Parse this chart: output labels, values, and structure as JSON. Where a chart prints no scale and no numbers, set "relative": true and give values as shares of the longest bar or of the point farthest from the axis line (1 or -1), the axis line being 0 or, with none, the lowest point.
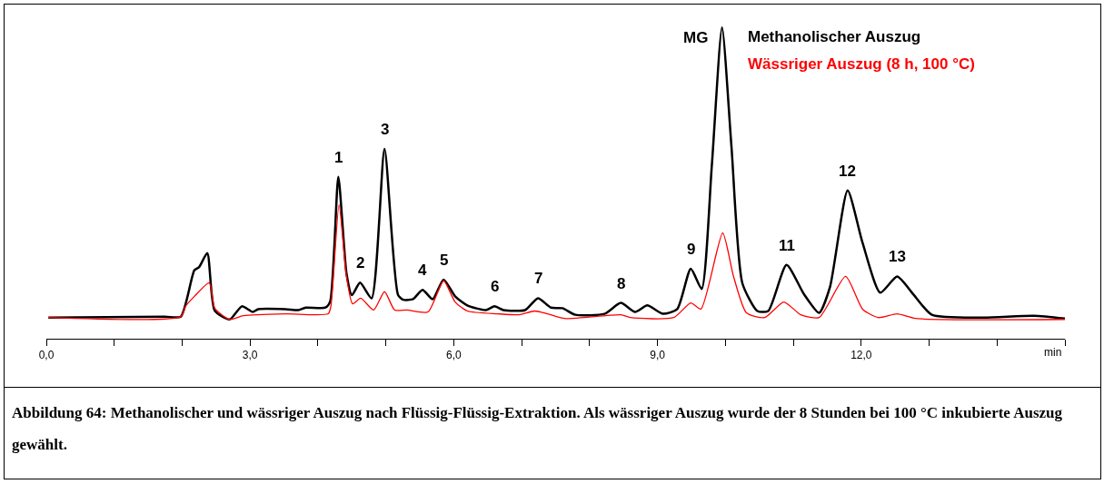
{
  "chart_data": {
    "type": "line",
    "relative": true,
    "xlabel": "min",
    "xlim": [
      0,
      15
    ],
    "xticks": [
      {
        "value": 0,
        "label": "0,0"
      },
      {
        "value": 1,
        "label": null
      },
      {
        "value": 2,
        "label": null
      },
      {
        "value": 3,
        "label": "3,0"
      },
      {
        "value": 4,
        "label": null
      },
      {
        "value": 5,
        "label": null
      },
      {
        "value": 6,
        "label": "6,0"
      },
      {
        "value": 7,
        "label": null
      },
      {
        "value": 8,
        "label": null
      },
      {
        "value": 9,
        "label": "9,0"
      },
      {
        "value": 10,
        "label": null
      },
      {
        "value": 11,
        "label": null
      },
      {
        "value": 12,
        "label": "12,0"
      },
      {
        "value": 13,
        "label": null
      },
      {
        "value": 14,
        "label": null
      },
      {
        "value": 15,
        "label": null
      }
    ],
    "grid": false,
    "legend": "top right",
    "marker": "none",
    "line_style": "solid",
    "tick_labels": "x",
    "series": [
      {
        "name": "Methanolischer Auszug",
        "color": "#000000",
        "x": [
          0.03,
          1.74,
          1.98,
          2.18,
          2.25,
          2.37,
          2.48,
          2.7,
          2.88,
          3.04,
          3.12,
          3.52,
          3.71,
          3.82,
          4.11,
          4.18,
          4.3,
          4.42,
          4.5,
          4.62,
          4.79,
          4.98,
          5.18,
          5.26,
          5.4,
          5.54,
          5.69,
          5.85,
          6.02,
          6.2,
          6.47,
          6.6,
          6.73,
          7.05,
          7.24,
          7.43,
          7.6,
          7.79,
          8.22,
          8.46,
          8.67,
          8.85,
          9.08,
          9.29,
          9.49,
          9.65,
          9.8,
          9.95,
          10.09,
          10.25,
          10.47,
          10.63,
          10.9,
          11.16,
          11.38,
          11.54,
          11.8,
          12.02,
          12.28,
          12.53,
          12.77,
          13.04,
          13.79,
          14.54,
          15.0
        ],
        "values": [
          0.068,
          0.071,
          0.071,
          0.22,
          0.23,
          0.275,
          0.09,
          0.062,
          0.104,
          0.086,
          0.095,
          0.095,
          0.092,
          0.1,
          0.1,
          0.12,
          0.52,
          0.21,
          0.14,
          0.18,
          0.13,
          0.61,
          0.14,
          0.125,
          0.127,
          0.157,
          0.127,
          0.19,
          0.136,
          0.107,
          0.092,
          0.104,
          0.092,
          0.092,
          0.13,
          0.1,
          0.098,
          0.077,
          0.08,
          0.115,
          0.086,
          0.107,
          0.08,
          0.095,
          0.225,
          0.16,
          0.556,
          1,
          0.615,
          0.178,
          0.089,
          0.089,
          0.237,
          0.142,
          0.083,
          0.166,
          0.476,
          0.308,
          0.148,
          0.2,
          0.142,
          0.077,
          0.068,
          0.074,
          0.065
        ]
      },
      {
        "name": "Wässriger Auszug (8 h, 100 °C)",
        "color": "#ff0000",
        "x": [
          0.03,
          1.98,
          2.05,
          2.18,
          2.4,
          2.48,
          2.7,
          2.9,
          3.52,
          4.15,
          4.19,
          4.31,
          4.42,
          4.51,
          4.63,
          4.82,
          4.98,
          5.13,
          5.31,
          5.62,
          5.85,
          6.02,
          6.2,
          6.65,
          6.96,
          7.19,
          7.38,
          7.63,
          8.46,
          8.6,
          9.24,
          9.49,
          9.64,
          9.96,
          10.12,
          10.31,
          10.58,
          10.86,
          11.11,
          11.38,
          11.77,
          12.02,
          12.25,
          12.53,
          12.8,
          15.0
        ],
        "values": [
          0.068,
          0.071,
          0.104,
          0.136,
          0.18,
          0.098,
          0.062,
          0.074,
          0.08,
          0.08,
          0.104,
          0.43,
          0.2,
          0.112,
          0.13,
          0.092,
          0.151,
          0.092,
          0.092,
          0.086,
          0.186,
          0.118,
          0.089,
          0.08,
          0.077,
          0.089,
          0.08,
          0.065,
          0.077,
          0.068,
          0.068,
          0.115,
          0.095,
          0.34,
          0.2,
          0.083,
          0.068,
          0.118,
          0.077,
          0.068,
          0.2,
          0.095,
          0.068,
          0.08,
          0.065,
          0.062
        ]
      }
    ],
    "annotations": [
      {
        "text": "1",
        "x": 4.3,
        "y": 0.52
      },
      {
        "text": "2",
        "x": 4.62,
        "y": 0.18
      },
      {
        "text": "3",
        "x": 4.98,
        "y": 0.61
      },
      {
        "text": "4",
        "x": 5.54,
        "y": 0.157
      },
      {
        "text": "5",
        "x": 5.85,
        "y": 0.19
      },
      {
        "text": "6",
        "x": 6.6,
        "y": 0.104
      },
      {
        "text": "7",
        "x": 7.24,
        "y": 0.13
      },
      {
        "text": "8",
        "x": 8.46,
        "y": 0.115
      },
      {
        "text": "9",
        "x": 9.49,
        "y": 0.225
      },
      {
        "text": "MG",
        "x": 9.95,
        "y": 1
      },
      {
        "text": "11",
        "x": 10.9,
        "y": 0.237
      },
      {
        "text": "12",
        "x": 11.8,
        "y": 0.476
      },
      {
        "text": "13",
        "x": 12.53,
        "y": 0.2
      },
      "Abbildung 64: Methanolischer und wässriger Auszug nach Flüssig-Flüssig-Extraktion. Als wässriger Auszug wurde der 8 Stunden bei 100 °C inkubierte Auszug gewählt."
    ]
  }
}
